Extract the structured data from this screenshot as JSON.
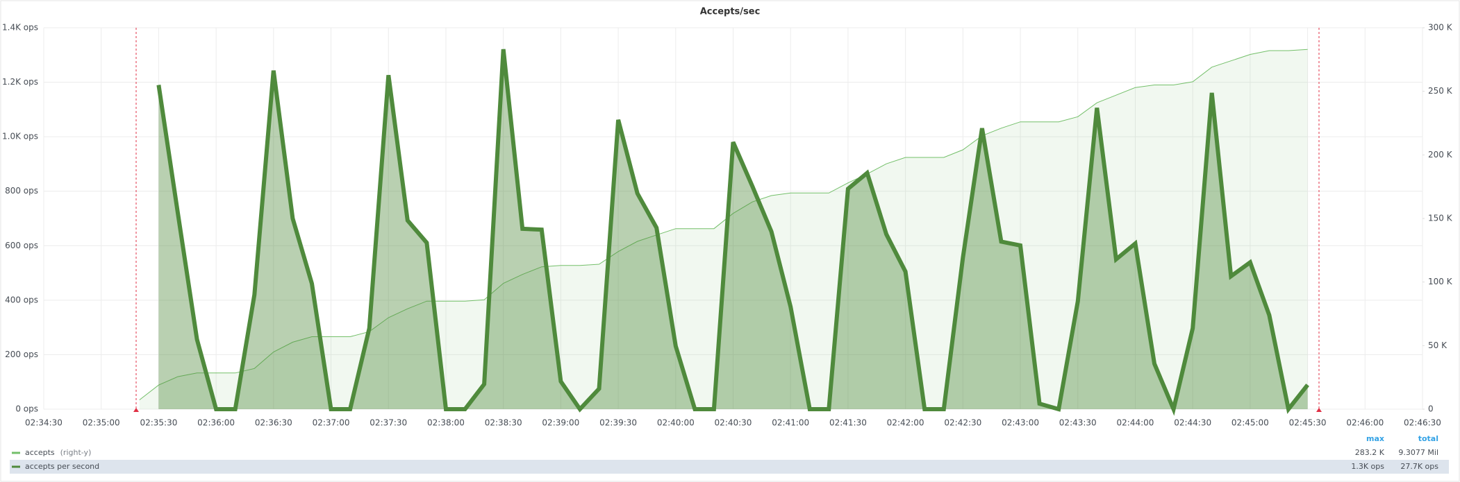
{
  "chart_data": {
    "type": "line",
    "title": "Accepts/sec",
    "x": [
      "02:35:20",
      "02:35:30",
      "02:35:40",
      "02:35:50",
      "02:36:00",
      "02:36:10",
      "02:36:20",
      "02:36:30",
      "02:36:40",
      "02:36:50",
      "02:37:00",
      "02:37:10",
      "02:37:20",
      "02:37:30",
      "02:37:40",
      "02:37:50",
      "02:38:00",
      "02:38:10",
      "02:38:20",
      "02:38:30",
      "02:38:40",
      "02:38:50",
      "02:39:00",
      "02:39:10",
      "02:39:20",
      "02:39:30",
      "02:39:40",
      "02:39:50",
      "02:40:00",
      "02:40:10",
      "02:40:20",
      "02:40:30",
      "02:40:40",
      "02:40:50",
      "02:41:00",
      "02:41:10",
      "02:41:20",
      "02:41:30",
      "02:41:40",
      "02:41:50",
      "02:42:00",
      "02:42:10",
      "02:42:20",
      "02:42:30",
      "02:42:40",
      "02:42:50",
      "02:43:00",
      "02:43:10",
      "02:43:20",
      "02:43:30",
      "02:43:40",
      "02:43:50",
      "02:44:00",
      "02:44:10",
      "02:44:20",
      "02:44:30",
      "02:44:40",
      "02:44:50",
      "02:45:00",
      "02:45:10",
      "02:45:20",
      "02:45:30"
    ],
    "series": [
      {
        "name": "accepts",
        "axis": "y2",
        "color": "#73bf69",
        "legend_note": "(right-y)",
        "max_label": "283.2 K",
        "total_label": "9.3077 Mil",
        "values": [
          7300,
          19000,
          25600,
          28500,
          28500,
          28500,
          32000,
          45000,
          52700,
          57000,
          57000,
          57000,
          61000,
          72000,
          79000,
          85000,
          85000,
          85000,
          86000,
          99000,
          106000,
          112000,
          113000,
          113000,
          114000,
          124000,
          132000,
          137000,
          142000,
          142000,
          142000,
          154000,
          163000,
          168000,
          170000,
          170000,
          170000,
          178000,
          185000,
          193000,
          198000,
          198000,
          198000,
          204000,
          215000,
          221000,
          226000,
          226000,
          226000,
          230000,
          241000,
          247000,
          253000,
          255000,
          255000,
          257500,
          269000,
          274000,
          279000,
          282000,
          282000,
          283000
        ]
      },
      {
        "name": "accepts per second",
        "color": "#4f8a3c",
        "max_label": "1.3K ops",
        "total_label": "27.7K ops",
        "values": [
          null,
          1190,
          720,
          256,
          0,
          0,
          420,
          1243,
          700,
          461,
          0,
          0,
          297,
          1226,
          693,
          611,
          0,
          0,
          92,
          1321,
          662,
          659,
          102,
          0,
          75,
          1062,
          792,
          666,
          232,
          0,
          0,
          980,
          819,
          652,
          376,
          0,
          0,
          809,
          867,
          642,
          505,
          0,
          0,
          556,
          1031,
          615,
          601,
          20,
          0,
          396,
          1106,
          550,
          608,
          167,
          0,
          297,
          1161,
          488,
          539,
          345,
          0,
          89
        ]
      }
    ],
    "xlim": [
      "02:34:30",
      "02:46:30"
    ],
    "xticks": [
      "02:34:30",
      "02:35:00",
      "02:35:30",
      "02:36:00",
      "02:36:30",
      "02:37:00",
      "02:37:30",
      "02:38:00",
      "02:38:30",
      "02:39:00",
      "02:39:30",
      "02:40:00",
      "02:40:30",
      "02:41:00",
      "02:41:30",
      "02:42:00",
      "02:42:30",
      "02:43:00",
      "02:43:30",
      "02:44:00",
      "02:44:30",
      "02:45:00",
      "02:45:30",
      "02:46:00",
      "02:46:30"
    ],
    "ylim": [
      0,
      1400
    ],
    "yticks": [
      {
        "value": 0,
        "label": "0 ops"
      },
      {
        "value": 200,
        "label": "200 ops"
      },
      {
        "value": 400,
        "label": "400 ops"
      },
      {
        "value": 600,
        "label": "600 ops"
      },
      {
        "value": 800,
        "label": "800 ops"
      },
      {
        "value": 1000,
        "label": "1.0K ops"
      },
      {
        "value": 1200,
        "label": "1.2K ops"
      },
      {
        "value": 1400,
        "label": "1.4K ops"
      }
    ],
    "y2lim": [
      0,
      300000
    ],
    "y2ticks": [
      0,
      {
        "value": 50000,
        "label": "50 K"
      },
      {
        "value": 100000,
        "label": "100 K"
      },
      {
        "value": 150000,
        "label": "150 K"
      },
      {
        "value": 200000,
        "label": "200 K"
      },
      {
        "value": 250000,
        "label": "250 K"
      },
      {
        "value": 300000,
        "label": "300 K"
      }
    ],
    "legend_columns": [
      "max",
      "total"
    ],
    "grid": true
  }
}
